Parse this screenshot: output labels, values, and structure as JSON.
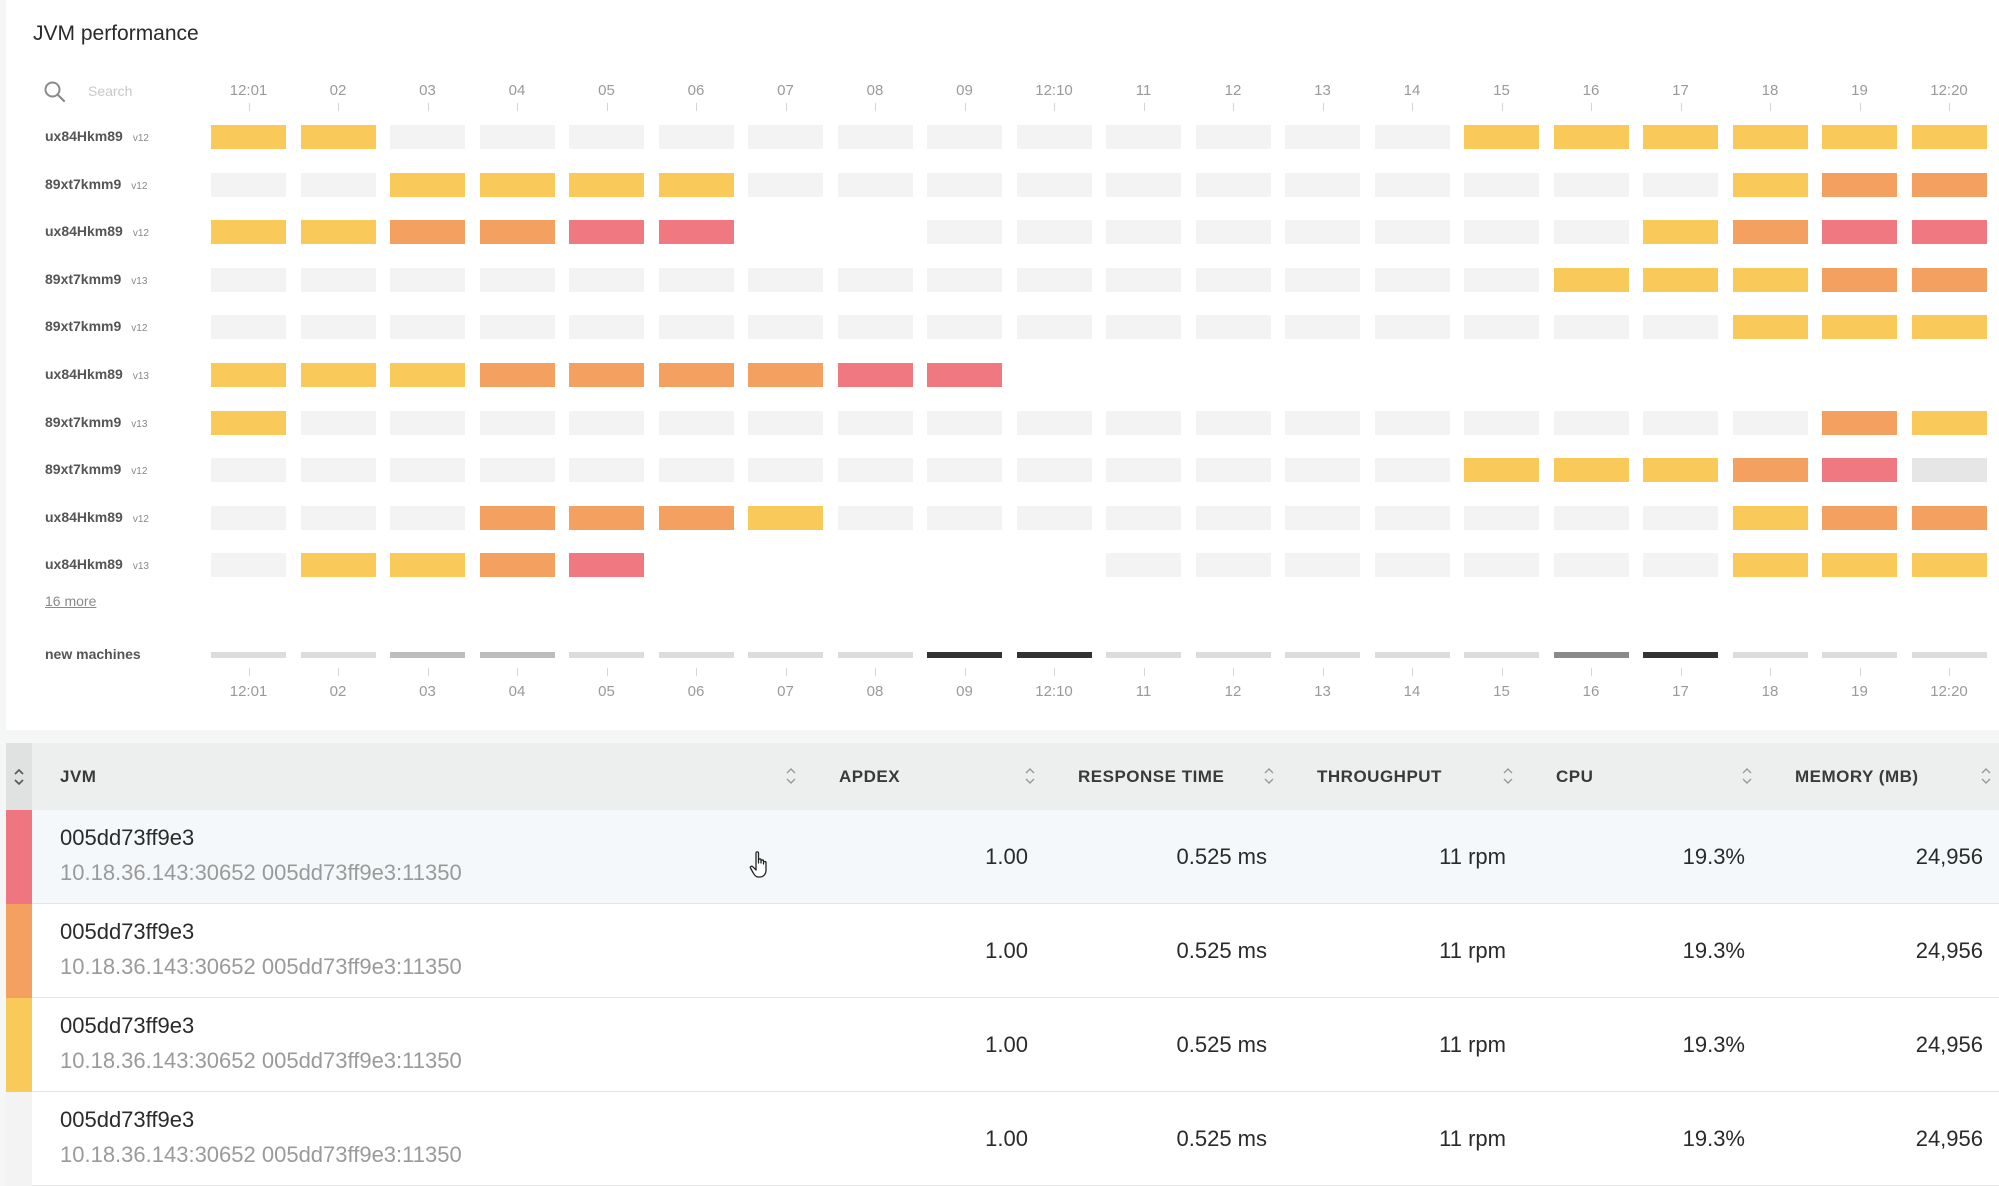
{
  "panel": {
    "title": "JVM performance",
    "search_placeholder": "Search",
    "more_link": "16 more",
    "new_machines_label": "new machines"
  },
  "timeline": {
    "ticks": [
      "12:01",
      "02",
      "03",
      "04",
      "05",
      "06",
      "07",
      "08",
      "09",
      "12:10",
      "11",
      "12",
      "13",
      "14",
      "15",
      "16",
      "17",
      "18",
      "19",
      "12:20"
    ]
  },
  "rows": [
    {
      "host": "ux84Hkm89",
      "version": "v12",
      "cells": [
        "y",
        "y",
        "g",
        "g",
        "g",
        "g",
        "g",
        "g",
        "g",
        "g",
        "g",
        "g",
        "g",
        "g",
        "y",
        "y",
        "y",
        "y",
        "y",
        "y"
      ]
    },
    {
      "host": "89xt7kmm9",
      "version": "v12",
      "cells": [
        "g",
        "g",
        "y",
        "y",
        "y",
        "y",
        "g",
        "g",
        "g",
        "g",
        "g",
        "g",
        "g",
        "g",
        "g",
        "g",
        "g",
        "y",
        "o",
        "o"
      ]
    },
    {
      "host": "ux84Hkm89",
      "version": "v12",
      "cells": [
        "y",
        "y",
        "o",
        "o",
        "r",
        "r",
        "",
        "",
        "g",
        "g",
        "g",
        "g",
        "g",
        "g",
        "g",
        "g",
        "y",
        "o",
        "r",
        "r"
      ]
    },
    {
      "host": "89xt7kmm9",
      "version": "v13",
      "cells": [
        "g",
        "g",
        "g",
        "g",
        "g",
        "g",
        "g",
        "g",
        "g",
        "g",
        "g",
        "g",
        "g",
        "g",
        "g",
        "y",
        "y",
        "y",
        "o",
        "o"
      ]
    },
    {
      "host": "89xt7kmm9",
      "version": "v12",
      "cells": [
        "g",
        "g",
        "g",
        "g",
        "g",
        "g",
        "g",
        "g",
        "g",
        "g",
        "g",
        "g",
        "g",
        "g",
        "g",
        "g",
        "g",
        "y",
        "y",
        "y"
      ]
    },
    {
      "host": "ux84Hkm89",
      "version": "v13",
      "cells": [
        "y",
        "y",
        "y",
        "o",
        "o",
        "o",
        "o",
        "r",
        "r",
        "",
        "",
        "",
        "",
        "",
        "",
        "",
        "",
        "",
        "",
        ""
      ]
    },
    {
      "host": "89xt7kmm9",
      "version": "v13",
      "cells": [
        "y",
        "g",
        "g",
        "g",
        "g",
        "g",
        "g",
        "g",
        "g",
        "g",
        "g",
        "g",
        "g",
        "g",
        "g",
        "g",
        "g",
        "g",
        "o",
        "y"
      ]
    },
    {
      "host": "89xt7kmm9",
      "version": "v12",
      "cells": [
        "g",
        "g",
        "g",
        "g",
        "g",
        "g",
        "g",
        "g",
        "g",
        "g",
        "g",
        "g",
        "g",
        "g",
        "y",
        "y",
        "y",
        "o",
        "r",
        "g2"
      ]
    },
    {
      "host": "ux84Hkm89",
      "version": "v12",
      "cells": [
        "g",
        "g",
        "g",
        "o",
        "o",
        "o",
        "y",
        "g",
        "g",
        "g",
        "g",
        "g",
        "g",
        "g",
        "g",
        "g",
        "g",
        "y",
        "o",
        "o"
      ]
    },
    {
      "host": "ux84Hkm89",
      "version": "v13",
      "cells": [
        "g",
        "y",
        "y",
        "o",
        "r",
        "",
        "",
        "",
        "",
        "",
        "g",
        "g",
        "g",
        "g",
        "g",
        "g",
        "g",
        "y",
        "y",
        "y"
      ]
    }
  ],
  "new_machines": [
    "#dcdcdc",
    "#dcdcdc",
    "#bdbdbd",
    "#bdbdbd",
    "#dcdcdc",
    "#dcdcdc",
    "#dcdcdc",
    "#dcdcdc",
    "#333333",
    "#333333",
    "#dcdcdc",
    "#dcdcdc",
    "#dcdcdc",
    "#dcdcdc",
    "#dcdcdc",
    "#8a8a8a",
    "#333333",
    "#dcdcdc",
    "#dcdcdc",
    "#dcdcdc"
  ],
  "colors": {
    "g": "#f3f3f3",
    "g2": "#e6e6e6",
    "y": "#f9ca5a",
    "o": "#f4a061",
    "r": "#f07880"
  },
  "table": {
    "headers": {
      "jvm": "JVM",
      "apdex": "APDEX",
      "response_time": "RESPONSE TIME",
      "throughput": "THROUGHPUT",
      "cpu": "CPU",
      "memory": "MEMORY (MB)"
    },
    "rows": [
      {
        "severity": "#ef7680",
        "name": "005dd73ff9e3",
        "address": "10.18.36.143:30652 005dd73ff9e3:11350",
        "apdex": "1.00",
        "response_time": "0.525 ms",
        "throughput": "11 rpm",
        "cpu": "19.3%",
        "memory": "24,956"
      },
      {
        "severity": "#f4a061",
        "name": "005dd73ff9e3",
        "address": "10.18.36.143:30652 005dd73ff9e3:11350",
        "apdex": "1.00",
        "response_time": "0.525 ms",
        "throughput": "11 rpm",
        "cpu": "19.3%",
        "memory": "24,956"
      },
      {
        "severity": "#f9ca5a",
        "name": "005dd73ff9e3",
        "address": "10.18.36.143:30652 005dd73ff9e3:11350",
        "apdex": "1.00",
        "response_time": "0.525 ms",
        "throughput": "11 rpm",
        "cpu": "19.3%",
        "memory": "24,956"
      },
      {
        "severity": "#f3f3f3",
        "name": "005dd73ff9e3",
        "address": "10.18.36.143:30652 005dd73ff9e3:11350",
        "apdex": "1.00",
        "response_time": "0.525 ms",
        "throughput": "11 rpm",
        "cpu": "19.3%",
        "memory": "24,956"
      }
    ]
  },
  "icons": {
    "search": "search-icon",
    "sort": "sort-icon",
    "cursor": "hand-pointer-icon"
  }
}
